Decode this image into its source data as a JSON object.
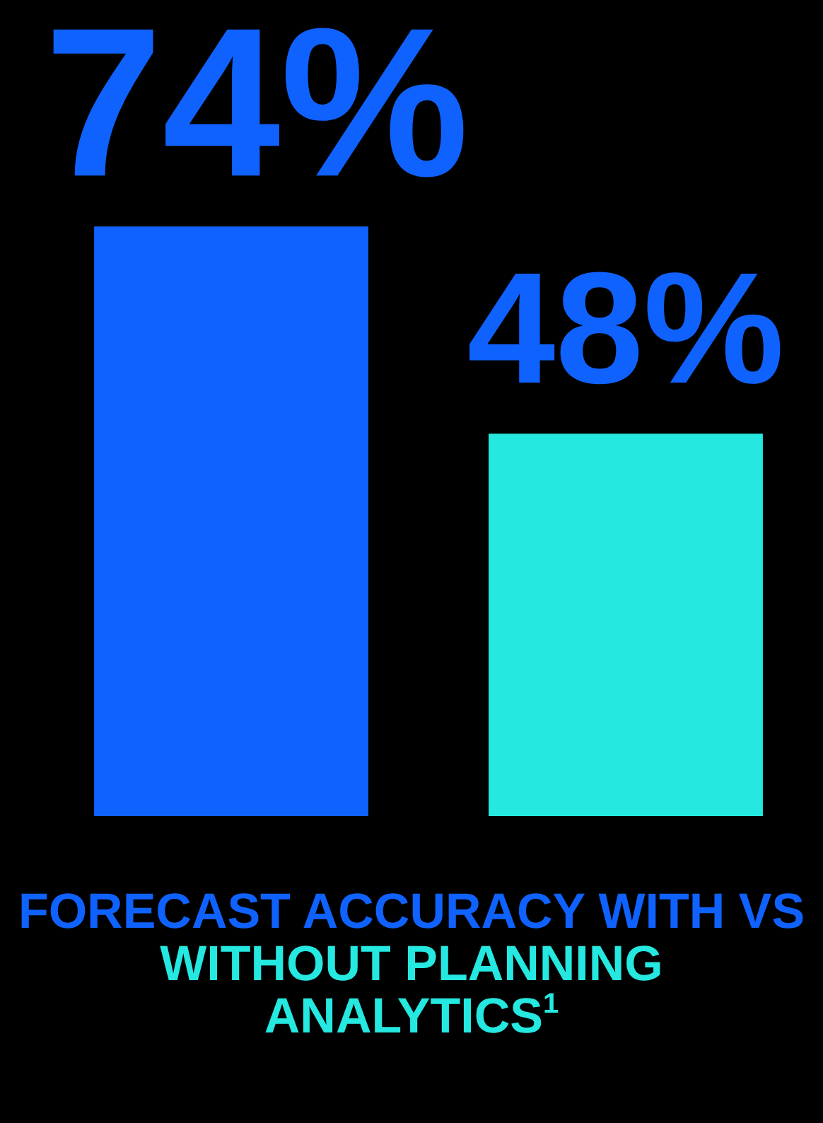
{
  "chart_data": {
    "type": "bar",
    "title": "FORECAST ACCURACY WITH VS",
    "subtitle": "WITHOUT PLANNING ANALYTICS$^{1}$",
    "categories": [
      null,
      null
    ],
    "values": [
      74,
      48
    ],
    "colors": [
      "#0f62fe",
      "#25e8e0"
    ],
    "value_labels": [
      "74%",
      "48%"
    ]
  }
}
